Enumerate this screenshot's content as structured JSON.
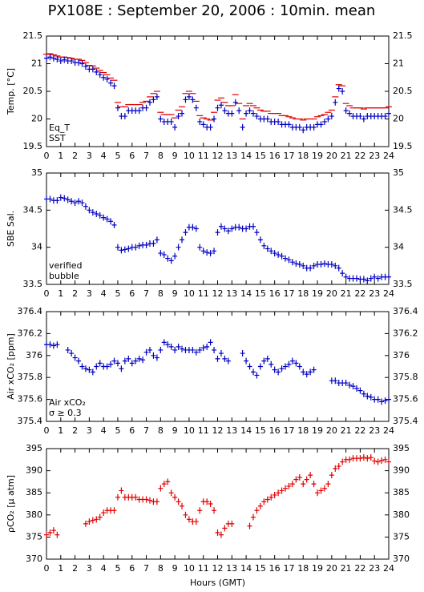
{
  "chart_data": [
    {
      "type": "scatter",
      "title": "PX108E : September 20, 2006 : 10min. mean",
      "ylabel": "Temp. [°C]",
      "x": [
        0,
        0.25,
        0.5,
        0.75,
        1,
        1.25,
        1.5,
        1.75,
        2,
        2.25,
        2.5,
        2.75,
        3,
        3.25,
        3.5,
        3.75,
        4,
        4.25,
        4.5,
        4.75,
        5,
        5.25,
        5.5,
        5.75,
        6,
        6.25,
        6.5,
        6.75,
        7,
        7.25,
        7.5,
        7.75,
        8,
        8.25,
        8.5,
        8.75,
        9,
        9.25,
        9.5,
        9.75,
        10,
        10.25,
        10.5,
        10.75,
        11,
        11.25,
        11.5,
        11.75,
        12,
        12.25,
        12.5,
        12.75,
        13,
        13.25,
        13.5,
        13.75,
        14,
        14.25,
        14.5,
        14.75,
        15,
        15.25,
        15.5,
        15.75,
        16,
        16.25,
        16.5,
        16.75,
        17,
        17.25,
        17.5,
        17.75,
        18,
        18.25,
        18.5,
        18.75,
        19,
        19.25,
        19.5,
        19.75,
        20,
        20.25,
        20.5,
        20.75,
        21,
        21.25,
        21.5,
        21.75,
        22,
        22.25,
        22.5,
        22.75,
        23,
        23.25,
        23.5,
        23.75,
        24
      ],
      "xlim": [
        0,
        24
      ],
      "xticks": [
        0,
        1,
        2,
        3,
        4,
        5,
        6,
        7,
        8,
        9,
        10,
        11,
        12,
        13,
        14,
        15,
        16,
        17,
        18,
        19,
        20,
        21,
        22,
        23,
        24
      ],
      "ylim": [
        19.5,
        21.5
      ],
      "yticks": [
        19.5,
        20,
        20.5,
        21,
        21.5
      ],
      "series": [
        {
          "name": "Eq_T",
          "color": "#e00000",
          "marker": "dash",
          "values": [
            21.17,
            21.18,
            21.16,
            21.14,
            21.12,
            21.12,
            21.11,
            21.1,
            21.08,
            21.08,
            21.06,
            21.02,
            20.97,
            20.96,
            20.92,
            20.88,
            20.84,
            20.8,
            20.74,
            20.7,
            20.3,
            20.22,
            20.22,
            20.26,
            20.26,
            20.26,
            20.26,
            20.3,
            20.32,
            20.4,
            20.46,
            20.5,
            20.12,
            20.08,
            20.08,
            20.08,
            20.02,
            20.16,
            20.22,
            20.46,
            20.5,
            20.46,
            20.32,
            20.06,
            20.02,
            20.0,
            19.98,
            20.12,
            20.34,
            20.38,
            20.3,
            20.24,
            20.24,
            20.44,
            20.28,
            20.0,
            20.24,
            20.28,
            20.24,
            20.2,
            20.16,
            20.14,
            20.14,
            20.1,
            20.1,
            20.1,
            20.06,
            20.06,
            20.04,
            20.02,
            20.0,
            20.0,
            19.98,
            20.0,
            20.0,
            20.0,
            20.04,
            20.06,
            20.08,
            20.12,
            20.16,
            20.4,
            20.62,
            20.6,
            20.28,
            20.24,
            20.2,
            20.2,
            20.2,
            20.18,
            20.2,
            20.2,
            20.2,
            20.2,
            20.2,
            20.2,
            20.22
          ]
        },
        {
          "name": "SST",
          "color": "#0000c0",
          "marker": "plus",
          "values": [
            21.1,
            21.12,
            21.1,
            21.08,
            21.05,
            21.07,
            21.05,
            21.05,
            21.02,
            21.02,
            21.0,
            20.95,
            20.9,
            20.9,
            20.85,
            20.8,
            20.75,
            20.72,
            20.65,
            20.6,
            20.2,
            20.05,
            20.05,
            20.15,
            20.15,
            20.15,
            20.15,
            20.2,
            20.2,
            20.3,
            20.35,
            20.4,
            20.0,
            19.95,
            19.95,
            19.95,
            19.85,
            20.05,
            20.1,
            20.35,
            20.4,
            20.35,
            20.2,
            19.95,
            19.9,
            19.85,
            19.85,
            20.0,
            20.2,
            20.25,
            20.15,
            20.1,
            20.1,
            20.3,
            20.15,
            19.85,
            20.1,
            20.15,
            20.1,
            20.05,
            20.0,
            20.0,
            20.0,
            19.95,
            19.95,
            19.95,
            19.9,
            19.9,
            19.9,
            19.85,
            19.85,
            19.85,
            19.8,
            19.85,
            19.85,
            19.85,
            19.9,
            19.9,
            19.95,
            20.0,
            20.05,
            20.3,
            20.55,
            20.5,
            20.15,
            20.1,
            20.05,
            20.05,
            20.05,
            20.0,
            20.05,
            20.05,
            20.05,
            20.05,
            20.05,
            20.05,
            20.1
          ]
        }
      ]
    },
    {
      "type": "scatter",
      "ylabel": "SBE Sal.",
      "x": [
        0,
        0.25,
        0.5,
        0.75,
        1,
        1.25,
        1.5,
        1.75,
        2,
        2.25,
        2.5,
        2.75,
        3,
        3.25,
        3.5,
        3.75,
        4,
        4.25,
        4.5,
        4.75,
        5,
        5.25,
        5.5,
        5.75,
        6,
        6.25,
        6.5,
        6.75,
        7,
        7.25,
        7.5,
        7.75,
        8,
        8.25,
        8.5,
        8.75,
        9,
        9.25,
        9.5,
        9.75,
        10,
        10.25,
        10.5,
        10.75,
        11,
        11.25,
        11.5,
        11.75,
        12,
        12.25,
        12.5,
        12.75,
        13,
        13.25,
        13.5,
        13.75,
        14,
        14.25,
        14.5,
        14.75,
        15,
        15.25,
        15.5,
        15.75,
        16,
        16.25,
        16.5,
        16.75,
        17,
        17.25,
        17.5,
        17.75,
        18,
        18.25,
        18.5,
        18.75,
        19,
        19.25,
        19.5,
        19.75,
        20,
        20.25,
        20.5,
        20.75,
        21,
        21.25,
        21.5,
        21.75,
        22,
        22.25,
        22.5,
        22.75,
        23,
        23.25,
        23.5,
        23.75,
        24
      ],
      "xlim": [
        0,
        24
      ],
      "xticks": [
        0,
        1,
        2,
        3,
        4,
        5,
        6,
        7,
        8,
        9,
        10,
        11,
        12,
        13,
        14,
        15,
        16,
        17,
        18,
        19,
        20,
        21,
        22,
        23,
        24
      ],
      "ylim": [
        33.5,
        35
      ],
      "yticks": [
        33.5,
        34,
        34.5,
        35
      ],
      "series": [
        {
          "name": "verified",
          "color": "#0000c0",
          "marker": "plus",
          "values": [
            34.65,
            34.65,
            34.63,
            34.63,
            34.67,
            34.66,
            34.64,
            34.62,
            34.6,
            34.62,
            34.6,
            34.55,
            34.5,
            34.47,
            34.45,
            34.43,
            34.4,
            34.38,
            34.35,
            34.3,
            34.0,
            33.96,
            33.97,
            33.98,
            34.0,
            34.0,
            34.02,
            34.03,
            34.03,
            34.05,
            34.05,
            34.1,
            33.92,
            33.9,
            33.85,
            33.82,
            33.88,
            34.0,
            34.1,
            34.2,
            34.27,
            34.27,
            34.25,
            34.0,
            33.95,
            33.93,
            33.92,
            33.95,
            34.2,
            34.28,
            34.25,
            34.22,
            34.25,
            34.27,
            34.27,
            34.25,
            34.25,
            34.28,
            34.28,
            34.2,
            34.1,
            34.02,
            33.98,
            33.95,
            33.92,
            33.9,
            33.88,
            33.85,
            33.83,
            33.8,
            33.78,
            33.77,
            33.75,
            33.72,
            33.72,
            33.75,
            33.77,
            33.77,
            33.78,
            33.77,
            33.77,
            33.75,
            33.72,
            33.65,
            33.6,
            33.58,
            33.58,
            33.58,
            33.57,
            33.57,
            33.55,
            33.58,
            33.6,
            33.58,
            33.6,
            33.6,
            33.6
          ]
        }
      ],
      "annotations": [
        {
          "text": "bubble",
          "color": "#cc00cc"
        }
      ]
    },
    {
      "type": "scatter",
      "ylabel": "Air xCO₂ [ppm]",
      "x": [
        0,
        0.25,
        0.5,
        0.75,
        1,
        1.25,
        1.5,
        1.75,
        2,
        2.25,
        2.5,
        2.75,
        3,
        3.25,
        3.5,
        3.75,
        4,
        4.25,
        4.5,
        4.75,
        5,
        5.25,
        5.5,
        5.75,
        6,
        6.25,
        6.5,
        6.75,
        7,
        7.25,
        7.5,
        7.75,
        8,
        8.25,
        8.5,
        8.75,
        9,
        9.25,
        9.5,
        9.75,
        10,
        10.25,
        10.5,
        10.75,
        11,
        11.25,
        11.5,
        11.75,
        12,
        12.25,
        12.5,
        12.75,
        13,
        13.25,
        13.5,
        13.75,
        14,
        14.25,
        14.5,
        14.75,
        15,
        15.25,
        15.5,
        15.75,
        16,
        16.25,
        16.5,
        16.75,
        17,
        17.25,
        17.5,
        17.75,
        18,
        18.25,
        18.5,
        18.75,
        19,
        19.25,
        19.5,
        19.75,
        20,
        20.25,
        20.5,
        20.75,
        21,
        21.25,
        21.5,
        21.75,
        22,
        22.25,
        22.5,
        22.75,
        23,
        23.25,
        23.5,
        23.75,
        24
      ],
      "xlim": [
        0,
        24
      ],
      "xticks": [
        0,
        1,
        2,
        3,
        4,
        5,
        6,
        7,
        8,
        9,
        10,
        11,
        12,
        13,
        14,
        15,
        16,
        17,
        18,
        19,
        20,
        21,
        22,
        23,
        24
      ],
      "ylim": [
        375.4,
        376.4
      ],
      "yticks": [
        375.4,
        375.6,
        375.8,
        376,
        376.2,
        376.4
      ],
      "series": [
        {
          "name": "Air xCO₂",
          "color": "#0000c0",
          "marker": "plus",
          "values": [
            376.1,
            376.1,
            376.09,
            376.1,
            null,
            null,
            376.05,
            376.02,
            375.98,
            375.95,
            375.9,
            375.88,
            375.87,
            375.85,
            375.9,
            375.93,
            375.9,
            375.9,
            375.92,
            375.95,
            375.93,
            375.88,
            375.95,
            375.97,
            375.93,
            375.95,
            375.97,
            375.96,
            376.03,
            376.05,
            376.0,
            375.98,
            376.05,
            376.12,
            376.1,
            376.08,
            376.05,
            376.08,
            376.06,
            376.05,
            376.05,
            376.05,
            376.03,
            376.05,
            376.07,
            376.08,
            376.12,
            376.05,
            375.97,
            376.02,
            375.97,
            375.95,
            null,
            null,
            null,
            376.02,
            375.95,
            375.9,
            375.85,
            375.82,
            375.9,
            375.95,
            375.97,
            375.92,
            375.87,
            375.85,
            375.88,
            375.9,
            375.92,
            375.95,
            375.93,
            375.9,
            375.85,
            375.83,
            375.85,
            375.87,
            null,
            null,
            null,
            null,
            375.77,
            375.77,
            375.75,
            375.75,
            375.75,
            375.73,
            375.72,
            375.7,
            375.68,
            375.65,
            375.63,
            375.62,
            375.6,
            375.6,
            375.58,
            375.59,
            375.6
          ]
        }
      ],
      "annotations": [
        {
          "text": "σ ≥ 0.3",
          "color": "#cc00cc"
        }
      ]
    },
    {
      "type": "scatter",
      "ylabel": "ρCO₂ [μ atm]",
      "xlabel": "Hours (GMT)",
      "x": [
        0,
        0.25,
        0.5,
        0.75,
        1,
        1.25,
        1.5,
        1.75,
        2,
        2.25,
        2.5,
        2.75,
        3,
        3.25,
        3.5,
        3.75,
        4,
        4.25,
        4.5,
        4.75,
        5,
        5.25,
        5.5,
        5.75,
        6,
        6.25,
        6.5,
        6.75,
        7,
        7.25,
        7.5,
        7.75,
        8,
        8.25,
        8.5,
        8.75,
        9,
        9.25,
        9.5,
        9.75,
        10,
        10.25,
        10.5,
        10.75,
        11,
        11.25,
        11.5,
        11.75,
        12,
        12.25,
        12.5,
        12.75,
        13,
        13.25,
        13.5,
        13.75,
        14,
        14.25,
        14.5,
        14.75,
        15,
        15.25,
        15.5,
        15.75,
        16,
        16.25,
        16.5,
        16.75,
        17,
        17.25,
        17.5,
        17.75,
        18,
        18.25,
        18.5,
        18.75,
        19,
        19.25,
        19.5,
        19.75,
        20,
        20.25,
        20.5,
        20.75,
        21,
        21.25,
        21.5,
        21.75,
        22,
        22.25,
        22.5,
        22.75,
        23,
        23.25,
        23.5,
        23.75,
        24
      ],
      "xlim": [
        0,
        24
      ],
      "xticks": [
        0,
        1,
        2,
        3,
        4,
        5,
        6,
        7,
        8,
        9,
        10,
        11,
        12,
        13,
        14,
        15,
        16,
        17,
        18,
        19,
        20,
        21,
        22,
        23,
        24
      ],
      "ylim": [
        370,
        395
      ],
      "yticks": [
        370,
        375,
        380,
        385,
        390,
        395
      ],
      "series": [
        {
          "name": "ρCO₂",
          "color": "#e00000",
          "marker": "plus",
          "values": [
            375.5,
            376,
            376.5,
            375.5,
            null,
            null,
            null,
            null,
            null,
            null,
            null,
            378,
            378.5,
            378.8,
            379,
            379.5,
            380.5,
            381,
            381,
            381,
            384,
            385.5,
            384,
            384,
            384,
            384,
            383.5,
            383.5,
            383.5,
            383.3,
            383,
            383,
            386,
            387,
            387.5,
            385,
            384,
            383,
            382,
            380,
            379,
            378.5,
            378.5,
            381,
            383,
            383,
            382.5,
            381,
            376,
            375.5,
            377,
            378,
            378,
            null,
            null,
            null,
            null,
            377.5,
            379.5,
            381,
            382,
            383,
            383.5,
            384,
            384.5,
            385,
            385.5,
            386,
            386.5,
            387,
            388,
            388.5,
            387,
            388,
            389,
            387,
            385,
            385.5,
            386,
            387,
            389,
            390.5,
            391,
            392,
            392.5,
            392.5,
            392.8,
            392.8,
            392.8,
            393,
            392.8,
            393,
            392.2,
            392,
            392.3,
            392.5,
            392
          ]
        }
      ]
    }
  ]
}
